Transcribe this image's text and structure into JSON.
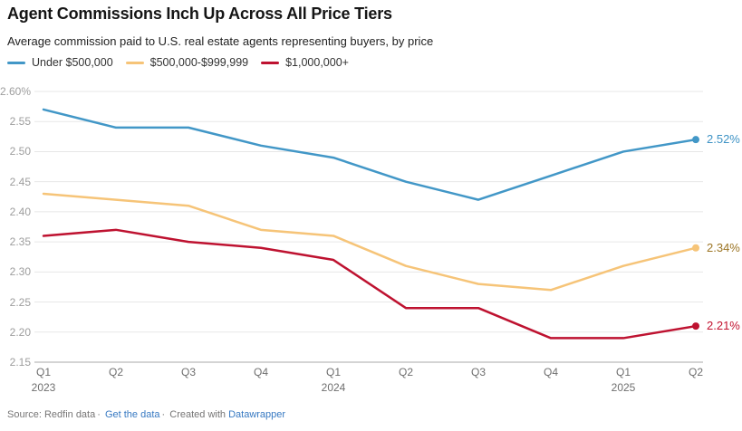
{
  "header": {
    "title": "Agent Commissions Inch Up Across All Price Tiers",
    "subtitle": "Average commission paid to U.S. real estate agents representing buyers, by price"
  },
  "chart_data": {
    "type": "line",
    "title": "Agent Commissions Inch Up Across All Price Tiers",
    "subtitle": "Average commission paid to U.S. real estate agents representing buyers, by price",
    "x_quarters": [
      "Q1",
      "Q2",
      "Q3",
      "Q4",
      "Q1",
      "Q2",
      "Q3",
      "Q4",
      "Q1",
      "Q2"
    ],
    "x_years": {
      "0": "2023",
      "4": "2024",
      "8": "2025"
    },
    "ylim": [
      2.15,
      2.6
    ],
    "grid": true,
    "legend_position": "top",
    "yticks": [
      {
        "value": 2.6,
        "label": "2.60%"
      },
      {
        "value": 2.55,
        "label": "2.55"
      },
      {
        "value": 2.5,
        "label": "2.50"
      },
      {
        "value": 2.45,
        "label": "2.45"
      },
      {
        "value": 2.4,
        "label": "2.40"
      },
      {
        "value": 2.35,
        "label": "2.35"
      },
      {
        "value": 2.3,
        "label": "2.30"
      },
      {
        "value": 2.25,
        "label": "2.25"
      },
      {
        "value": 2.2,
        "label": "2.20"
      },
      {
        "value": 2.15,
        "label": "2.15"
      }
    ],
    "series": [
      {
        "name": "Under $500,000",
        "color": "#4297C7",
        "label_color": "#3E93C5",
        "values": [
          2.57,
          2.54,
          2.54,
          2.51,
          2.49,
          2.45,
          2.42,
          2.46,
          2.5,
          2.52
        ],
        "end_label": "2.52%"
      },
      {
        "name": "$500,000-$999,999",
        "color": "#F6C478",
        "label_color": "#9C7524",
        "values": [
          2.43,
          2.42,
          2.41,
          2.37,
          2.36,
          2.31,
          2.28,
          2.27,
          2.31,
          2.34
        ],
        "end_label": "2.34%"
      },
      {
        "name": "$1,000,000+",
        "color": "#BE1230",
        "label_color": "#C2122F",
        "values": [
          2.36,
          2.37,
          2.35,
          2.34,
          2.32,
          2.24,
          2.24,
          2.19,
          2.19,
          2.21
        ],
        "end_label": "2.21%"
      }
    ],
    "grid_color": "#e7e7e7",
    "baseline_color": "#a9a9a9"
  },
  "footer": {
    "source_label": "Source: Redfin data",
    "separator": "·",
    "get_data_link": "Get the data",
    "created_with": "Created with",
    "datawrapper_link": "Datawrapper",
    "link_color": "#3779C2"
  }
}
